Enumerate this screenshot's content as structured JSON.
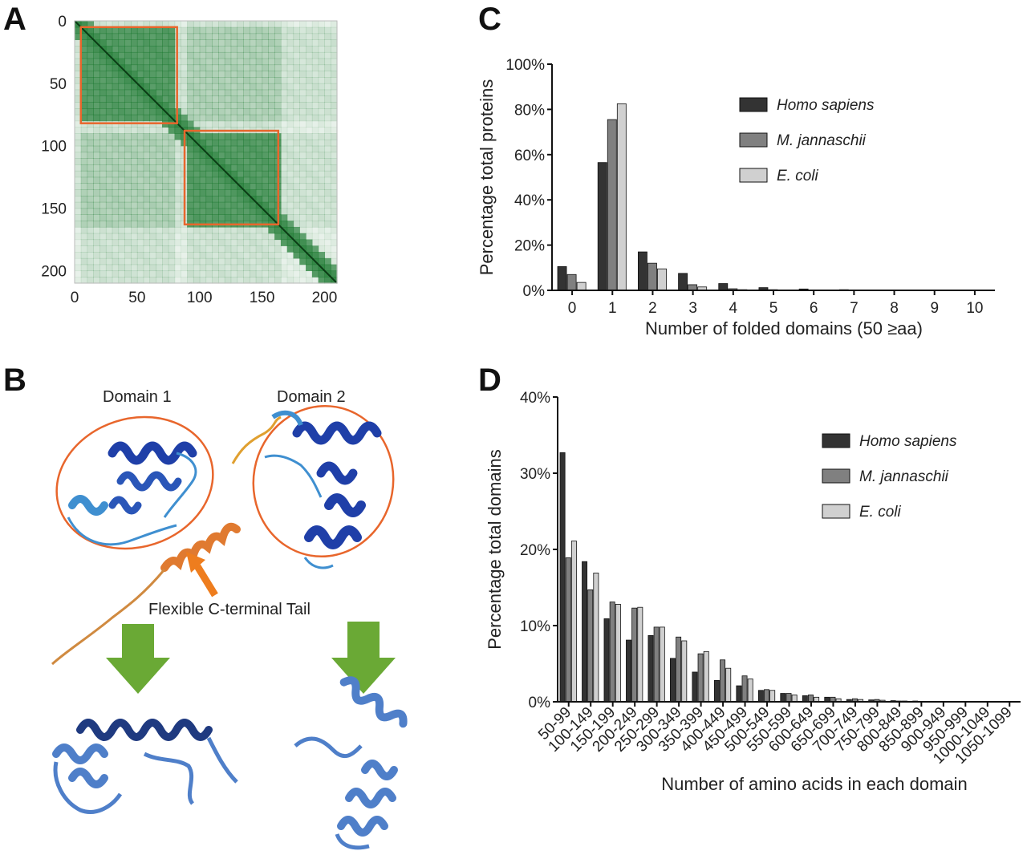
{
  "panels": {
    "a": "A",
    "b": "B",
    "c": "C",
    "d": "D"
  },
  "panel_b": {
    "domain1_label": "Domain 1",
    "domain2_label": "Domain 2",
    "tail_label": "Flexible C-terminal Tail",
    "colors": {
      "domain_ring": "#e8662c",
      "helix_dark": "#1f3fa8",
      "helix_light": "#3f8fd0",
      "tail": "#e07a30",
      "arrow_green": "#6aa935",
      "arrow_orange": "#ee7d1e",
      "result_helix": "#4f7fc9"
    }
  },
  "chart_data": [
    {
      "id": "A",
      "type": "heatmap",
      "title": "",
      "xlabel": "",
      "ylabel": "",
      "xticks": [
        0,
        50,
        100,
        150,
        200
      ],
      "yticks": [
        0,
        50,
        100,
        150,
        200
      ],
      "xlim": [
        0,
        210
      ],
      "ylim": [
        0,
        210
      ],
      "boxes": [
        {
          "from": 5,
          "to": 82
        },
        {
          "from": 88,
          "to": 163
        }
      ],
      "colors": {
        "cell": "#1e7a32",
        "box": "#e8662c"
      }
    },
    {
      "id": "C",
      "type": "bar",
      "xlabel": "Number of folded domains (50 ≥aa)",
      "ylabel": "Percentage total proteins",
      "categories": [
        "0",
        "1",
        "2",
        "3",
        "4",
        "5",
        "6",
        "7",
        "8",
        "9",
        "10"
      ],
      "ylim": [
        0,
        100
      ],
      "yticks": [
        "0%",
        "20%",
        "40%",
        "60%",
        "80%",
        "100%"
      ],
      "legend_position": "top-right",
      "series": [
        {
          "name": "Homo sapiens",
          "color": "#333333",
          "values": [
            10.5,
            56.5,
            17,
            7.5,
            3,
            1.2,
            0.6,
            0.3,
            0.1,
            0.05,
            0.05
          ]
        },
        {
          "name": "M. jannaschii",
          "color": "#808080",
          "values": [
            7,
            75.5,
            12,
            2.5,
            0.7,
            0.3,
            0.1,
            0,
            0,
            0,
            0
          ]
        },
        {
          "name": "E. coli",
          "color": "#d0d0d0",
          "values": [
            3.5,
            82.5,
            9.5,
            1.5,
            0.3,
            0.1,
            0,
            0,
            0,
            0,
            0
          ]
        }
      ]
    },
    {
      "id": "D",
      "type": "bar",
      "xlabel": "Number of amino acids in each domain",
      "ylabel": "Percentage total domains",
      "categories": [
        "50-99",
        "100-149",
        "150-199",
        "200-249",
        "250-299",
        "300-349",
        "350-399",
        "400-449",
        "450-499",
        "500-549",
        "550-599",
        "600-649",
        "650-699",
        "700-749",
        "750-799",
        "800-849",
        "850-899",
        "900-949",
        "950-999",
        "1000-1049",
        "1050-1099"
      ],
      "ylim": [
        0,
        40
      ],
      "yticks": [
        "0%",
        "10%",
        "20%",
        "30%",
        "40%"
      ],
      "legend_position": "top-right",
      "series": [
        {
          "name": "Homo sapiens",
          "color": "#333333",
          "values": [
            32.7,
            18.4,
            10.9,
            8.1,
            8.7,
            5.7,
            3.9,
            2.8,
            2.1,
            1.5,
            1.1,
            0.8,
            0.6,
            0.3,
            0.25,
            0.15,
            0.1,
            0.05,
            0.05,
            0.05,
            0.03
          ]
        },
        {
          "name": "M. jannaschii",
          "color": "#808080",
          "values": [
            18.9,
            14.7,
            13.1,
            12.3,
            9.8,
            8.5,
            6.3,
            5.5,
            3.4,
            1.6,
            1.1,
            0.9,
            0.6,
            0.4,
            0.3,
            0.1,
            0.05,
            0,
            0,
            0,
            0
          ]
        },
        {
          "name": "E. coli",
          "color": "#d0d0d0",
          "values": [
            21.1,
            16.9,
            12.8,
            12.4,
            9.8,
            8.0,
            6.6,
            4.4,
            3.0,
            1.5,
            0.9,
            0.6,
            0.4,
            0.3,
            0.2,
            0.1,
            0.05,
            0,
            0,
            0,
            0
          ]
        }
      ]
    }
  ]
}
